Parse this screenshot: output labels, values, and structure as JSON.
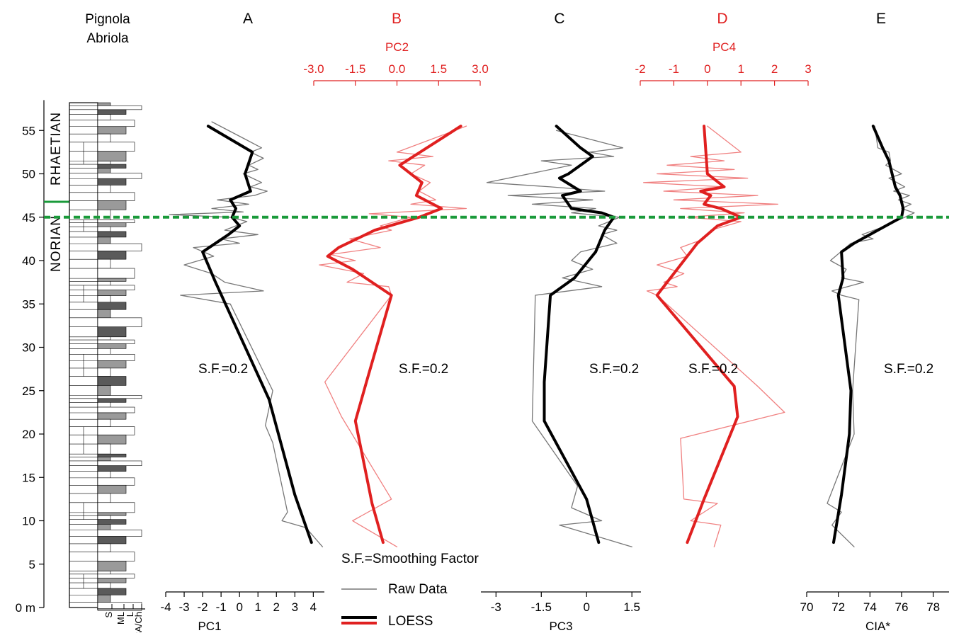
{
  "section": {
    "title_line1": "Pignola",
    "title_line2": "Abriola",
    "unit": "m",
    "depth_ticks": [
      0,
      5,
      10,
      15,
      20,
      25,
      30,
      35,
      40,
      45,
      50,
      55
    ],
    "stages": [
      "RHAETIAN",
      "NORIAN"
    ],
    "lithology_axis_labels": [
      "S",
      "ML",
      "L",
      "CA/Ch"
    ]
  },
  "boundary_depth": 45,
  "boundary_color": "#1a9a3a",
  "annotation": "S.F.=0.2",
  "legend": {
    "smoothing_note": "S.F.=Smoothing Factor",
    "raw_label": "Raw Data",
    "loess_label": "LOESS"
  },
  "colors": {
    "black": "#000000",
    "raw_black": "#777777",
    "red": "#e02020",
    "raw_red": "#f08080"
  },
  "chart_data": [
    {
      "type": "line",
      "panel": "A",
      "xlabel": "PC1",
      "axis_position": "bottom",
      "ticks": [
        -4,
        -3,
        -2,
        -1,
        0,
        1,
        2,
        3,
        4
      ],
      "xlim": [
        -4,
        4.6
      ],
      "color": "black",
      "series": [
        {
          "kind": "raw",
          "points": [
            [
              -1.5,
              56
            ],
            [
              0.3,
              54
            ],
            [
              1.2,
              53
            ],
            [
              0.6,
              52.5
            ],
            [
              1.3,
              51.8
            ],
            [
              0.5,
              51
            ],
            [
              1.0,
              50.5
            ],
            [
              0.2,
              50
            ],
            [
              1.2,
              49
            ],
            [
              0.6,
              48.5
            ],
            [
              1.5,
              48
            ],
            [
              0.8,
              47.5
            ],
            [
              -1.2,
              47
            ],
            [
              0.5,
              46.5
            ],
            [
              -1.5,
              46
            ],
            [
              0.2,
              45.6
            ],
            [
              -3.8,
              45.3
            ],
            [
              -0.5,
              45
            ],
            [
              0.4,
              44.5
            ],
            [
              -0.8,
              43.5
            ],
            [
              1.0,
              43
            ],
            [
              -1.0,
              42.5
            ],
            [
              0.0,
              42
            ],
            [
              -2.5,
              41.5
            ],
            [
              -1.4,
              40.5
            ],
            [
              -3.0,
              39.5
            ],
            [
              -1.5,
              38.5
            ],
            [
              -0.8,
              37.5
            ],
            [
              1.3,
              36.5
            ],
            [
              -3.2,
              36
            ],
            [
              -0.5,
              35
            ],
            [
              1.8,
              25
            ],
            [
              1.4,
              21
            ],
            [
              1.8,
              19
            ],
            [
              2.6,
              11
            ],
            [
              2.3,
              10
            ],
            [
              3.6,
              9.2
            ],
            [
              4.5,
              7
            ]
          ]
        },
        {
          "kind": "loess",
          "points": [
            [
              -1.7,
              55.5
            ],
            [
              0.7,
              52.5
            ],
            [
              0.3,
              50
            ],
            [
              0.6,
              48
            ],
            [
              -0.5,
              47
            ],
            [
              -0.2,
              46
            ],
            [
              -0.4,
              45
            ],
            [
              0.0,
              44
            ],
            [
              -0.6,
              43
            ],
            [
              -2.0,
              41
            ],
            [
              -1.3,
              37.5
            ],
            [
              1.6,
              24
            ],
            [
              3.0,
              13
            ],
            [
              3.9,
              7.5
            ]
          ]
        }
      ]
    },
    {
      "type": "line",
      "panel": "B",
      "xlabel": "PC2",
      "axis_position": "top",
      "ticks": [
        -3.0,
        -1.5,
        0.0,
        1.5,
        3.0
      ],
      "xlim": [
        -3.0,
        3.0
      ],
      "color": "red",
      "series": [
        {
          "kind": "raw",
          "points": [
            [
              2.5,
              55.5
            ],
            [
              0.0,
              52.5
            ],
            [
              1.3,
              52
            ],
            [
              -0.3,
              51.5
            ],
            [
              1.0,
              51
            ],
            [
              0.5,
              50
            ],
            [
              1.2,
              49
            ],
            [
              0.8,
              48
            ],
            [
              1.4,
              47
            ],
            [
              0.5,
              46.5
            ],
            [
              2.5,
              46
            ],
            [
              -1.0,
              45.4
            ],
            [
              0.5,
              45
            ],
            [
              -0.6,
              44
            ],
            [
              -0.2,
              43.5
            ],
            [
              -1.7,
              42.5
            ],
            [
              -0.6,
              41.5
            ],
            [
              -2.4,
              40.7
            ],
            [
              -1.5,
              40
            ],
            [
              -2.8,
              39.5
            ],
            [
              -1.2,
              38.5
            ],
            [
              -1.8,
              37.5
            ],
            [
              -0.3,
              37
            ],
            [
              -0.2,
              36
            ],
            [
              -2.6,
              26
            ],
            [
              -2.0,
              22
            ],
            [
              -0.2,
              12.5
            ],
            [
              -1.6,
              10
            ],
            [
              0.0,
              7
            ]
          ]
        },
        {
          "kind": "loess",
          "points": [
            [
              2.3,
              55.5
            ],
            [
              0.1,
              51
            ],
            [
              0.9,
              49
            ],
            [
              0.7,
              47.5
            ],
            [
              1.6,
              46
            ],
            [
              0.8,
              45
            ],
            [
              -0.8,
              43.5
            ],
            [
              -2.1,
              41.5
            ],
            [
              -2.5,
              40.5
            ],
            [
              -1.6,
              39
            ],
            [
              -0.2,
              36
            ],
            [
              -1.1,
              26
            ],
            [
              -1.5,
              21.5
            ],
            [
              -0.9,
              12
            ],
            [
              -0.5,
              7.5
            ]
          ]
        }
      ]
    },
    {
      "type": "line",
      "panel": "C",
      "xlabel": "PC3",
      "axis_position": "bottom",
      "ticks": [
        -3.0,
        -1.5,
        0.0,
        1.5
      ],
      "xlim": [
        -3.5,
        1.8
      ],
      "color": "black",
      "series": [
        {
          "kind": "raw",
          "points": [
            [
              -1.0,
              55
            ],
            [
              1.2,
              53
            ],
            [
              0.1,
              52.5
            ],
            [
              0.9,
              52
            ],
            [
              -1.5,
              51.5
            ],
            [
              -0.5,
              51
            ],
            [
              -3.3,
              49
            ],
            [
              -1.2,
              48.5
            ],
            [
              0.6,
              48
            ],
            [
              -2.6,
              47.5
            ],
            [
              0.2,
              47
            ],
            [
              -1.8,
              46.5
            ],
            [
              0.3,
              46
            ],
            [
              -0.5,
              45.5
            ],
            [
              1.1,
              45
            ],
            [
              0.4,
              44
            ],
            [
              1.0,
              43.5
            ],
            [
              0.5,
              43
            ],
            [
              1.0,
              42
            ],
            [
              -0.2,
              41
            ],
            [
              -0.5,
              40
            ],
            [
              0.2,
              39
            ],
            [
              -0.8,
              38
            ],
            [
              0.5,
              37
            ],
            [
              -1.7,
              36
            ],
            [
              -1.8,
              21.5
            ],
            [
              -0.3,
              14
            ],
            [
              -0.5,
              11.5
            ],
            [
              0.5,
              10
            ],
            [
              -0.9,
              9.5
            ],
            [
              1.5,
              7
            ]
          ]
        },
        {
          "kind": "loess",
          "points": [
            [
              -1.0,
              55.5
            ],
            [
              -0.2,
              53
            ],
            [
              0.2,
              52
            ],
            [
              -0.6,
              50
            ],
            [
              -0.9,
              49.5
            ],
            [
              -0.2,
              48
            ],
            [
              -0.8,
              47.5
            ],
            [
              -0.5,
              46
            ],
            [
              0.5,
              45.5
            ],
            [
              0.9,
              45
            ],
            [
              0.6,
              43.5
            ],
            [
              0.3,
              41
            ],
            [
              -0.4,
              38
            ],
            [
              -1.2,
              36
            ],
            [
              -1.4,
              26
            ],
            [
              -1.4,
              21.5
            ],
            [
              0.0,
              12.5
            ],
            [
              0.4,
              7.5
            ]
          ]
        }
      ]
    },
    {
      "type": "line",
      "panel": "D",
      "xlabel": "PC4",
      "axis_position": "top",
      "ticks": [
        -2,
        -1,
        0,
        1,
        2,
        3
      ],
      "xlim": [
        -2,
        3
      ],
      "color": "red",
      "series": [
        {
          "kind": "raw",
          "points": [
            [
              0.0,
              55.5
            ],
            [
              1.0,
              52.5
            ],
            [
              -0.5,
              52
            ],
            [
              0.5,
              51.5
            ],
            [
              -1.2,
              51
            ],
            [
              0.8,
              50.5
            ],
            [
              -1.5,
              50
            ],
            [
              1.2,
              49.5
            ],
            [
              -1.9,
              49
            ],
            [
              0.5,
              48.5
            ],
            [
              -1.3,
              48
            ],
            [
              1.5,
              47.5
            ],
            [
              -1.0,
              47
            ],
            [
              2.1,
              46.5
            ],
            [
              -0.8,
              46
            ],
            [
              1.1,
              45.5
            ],
            [
              -0.6,
              45
            ],
            [
              1.0,
              44.5
            ],
            [
              0.1,
              43.5
            ],
            [
              -0.1,
              42.5
            ],
            [
              -0.8,
              41.5
            ],
            [
              -0.6,
              40.5
            ],
            [
              -1.5,
              39.5
            ],
            [
              -0.7,
              38.5
            ],
            [
              -1.3,
              37.5
            ],
            [
              -0.9,
              37
            ],
            [
              -1.8,
              36.5
            ],
            [
              -1.5,
              36
            ],
            [
              1.5,
              25.5
            ],
            [
              2.3,
              22.5
            ],
            [
              -0.8,
              19.5
            ],
            [
              -0.7,
              12.5
            ],
            [
              0.3,
              12
            ],
            [
              -0.5,
              10
            ],
            [
              0.4,
              9.5
            ],
            [
              0.2,
              7
            ]
          ]
        },
        {
          "kind": "loess",
          "points": [
            [
              -0.1,
              55.5
            ],
            [
              0.0,
              50
            ],
            [
              0.5,
              48.5
            ],
            [
              -0.2,
              48
            ],
            [
              0.1,
              47.5
            ],
            [
              -0.1,
              46.5
            ],
            [
              0.4,
              46
            ],
            [
              1.0,
              45
            ],
            [
              0.3,
              44
            ],
            [
              -0.3,
              42
            ],
            [
              -0.8,
              39.5
            ],
            [
              -1.5,
              36
            ],
            [
              0.8,
              25.5
            ],
            [
              0.9,
              22
            ],
            [
              -0.1,
              12.5
            ],
            [
              -0.6,
              7.5
            ]
          ]
        }
      ]
    },
    {
      "type": "line",
      "panel": "E",
      "xlabel": "CIA*",
      "axis_position": "bottom",
      "ticks": [
        70,
        72,
        74,
        76,
        78
      ],
      "xlim": [
        70,
        79
      ],
      "color": "black",
      "series": [
        {
          "kind": "raw",
          "points": [
            [
              74.3,
              55.5
            ],
            [
              74.5,
              53
            ],
            [
              75.2,
              52.5
            ],
            [
              75.3,
              51.5
            ],
            [
              75.0,
              51
            ],
            [
              76.0,
              50
            ],
            [
              75.2,
              49.5
            ],
            [
              76.2,
              48.5
            ],
            [
              75.5,
              48
            ],
            [
              76.5,
              47.5
            ],
            [
              75.8,
              47
            ],
            [
              76.6,
              46.5
            ],
            [
              76.0,
              46
            ],
            [
              76.8,
              45.5
            ],
            [
              76.2,
              45
            ],
            [
              75.0,
              44
            ],
            [
              73.5,
              43
            ],
            [
              74.2,
              42.5
            ],
            [
              72.8,
              42
            ],
            [
              71.5,
              40
            ],
            [
              72.5,
              39
            ],
            [
              72.2,
              38
            ],
            [
              73.6,
              37.5
            ],
            [
              71.6,
              36.5
            ],
            [
              72.2,
              36
            ],
            [
              73.3,
              35.5
            ],
            [
              72.9,
              25
            ],
            [
              73.0,
              20
            ],
            [
              71.3,
              12
            ],
            [
              72.2,
              11
            ],
            [
              71.6,
              9.5
            ],
            [
              73.0,
              7
            ]
          ]
        },
        {
          "kind": "loess",
          "points": [
            [
              74.2,
              55.5
            ],
            [
              74.8,
              53
            ],
            [
              75.2,
              51.5
            ],
            [
              75.4,
              50
            ],
            [
              75.6,
              48.5
            ],
            [
              75.9,
              47.5
            ],
            [
              76.1,
              46
            ],
            [
              76.0,
              45
            ],
            [
              74.5,
              43.5
            ],
            [
              73.0,
              42
            ],
            [
              72.2,
              41
            ],
            [
              72.3,
              38
            ],
            [
              72.0,
              36
            ],
            [
              72.8,
              25
            ],
            [
              72.7,
              20
            ],
            [
              72.2,
              13
            ],
            [
              71.7,
              7.5
            ]
          ]
        }
      ]
    }
  ],
  "panel_titles": [
    "A",
    "B",
    "C",
    "D",
    "E"
  ],
  "panel_title_colors": [
    "black",
    "red",
    "black",
    "red",
    "black"
  ]
}
